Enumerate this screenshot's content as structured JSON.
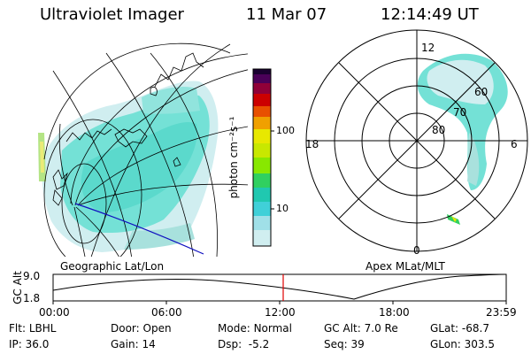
{
  "header": {
    "instrument": "Ultraviolet Imager",
    "date": "11 Mar 07",
    "time": "12:14:49 UT"
  },
  "geo_panel": {
    "label": "Geographic Lat/Lon"
  },
  "polar_panel": {
    "label": "Apex MLat/MLT",
    "mlt_labels": {
      "top": "12",
      "left": "18",
      "right": "6",
      "bottom": "0"
    },
    "lat_labels": [
      "60",
      "70",
      "80"
    ]
  },
  "colorbar": {
    "unit_label": "photon cm⁻²s⁻¹",
    "ticks": [
      "100",
      "10"
    ],
    "colors": [
      "#1a0030",
      "#4a0058",
      "#900038",
      "#cc0000",
      "#e85000",
      "#f0a000",
      "#e8e800",
      "#88e800",
      "#30d060",
      "#20c8b0",
      "#40d0d8",
      "#a0e0e8",
      "#d0eef0"
    ]
  },
  "altitude_plot": {
    "ylabel": "GC Alt",
    "y_ticks": [
      "9.0",
      "1.8"
    ],
    "x_ticks": [
      "00:00",
      "06:00",
      "12:00",
      "18:00",
      "23:59"
    ],
    "marker_time": "12:14:49"
  },
  "status": {
    "row1": [
      {
        "label": "Flt:",
        "value": "LBHL"
      },
      {
        "label": "Door:",
        "value": "Open"
      },
      {
        "label": "Mode:",
        "value": "Normal"
      },
      {
        "label": "GC Alt:",
        "value": "7.0 Re"
      },
      {
        "label": "GLat:",
        "value": "-68.7"
      }
    ],
    "row2": [
      {
        "label": "IP:",
        "value": "36.0"
      },
      {
        "label": "Gain:",
        "value": "14"
      },
      {
        "label": "Dsp:",
        "value": "-5.2"
      },
      {
        "label": "Seq:",
        "value": "39"
      },
      {
        "label": "GLon:",
        "value": "303.5"
      }
    ]
  }
}
